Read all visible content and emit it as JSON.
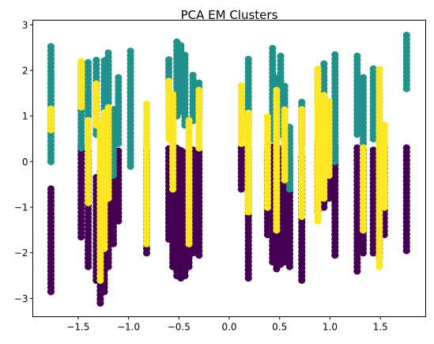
{
  "chart_data": {
    "type": "scatter",
    "title": "PCA EM Clusters",
    "xlabel": "",
    "ylabel": "",
    "xlim": [
      -1.95,
      1.95
    ],
    "ylim": [
      -3.4,
      3.1
    ],
    "xticks": [
      -1.5,
      -1.0,
      -0.5,
      0.0,
      0.5,
      1.0,
      1.5
    ],
    "xtick_labels": [
      "−1.5",
      "−1.0",
      "−0.5",
      "0.0",
      "0.5",
      "1.0",
      "1.5"
    ],
    "yticks": [
      -3,
      -2,
      -1,
      0,
      1,
      2,
      3
    ],
    "ytick_labels": [
      "−3",
      "−2",
      "−1",
      "0",
      "1",
      "2",
      "3"
    ],
    "grid": false,
    "legend": false,
    "colors": {
      "cluster_0": "#440154",
      "cluster_1": "#21918c",
      "cluster_2": "#fde725"
    },
    "series": [
      {
        "cluster": 0,
        "color": "#440154",
        "columns": [
          {
            "x": -1.77,
            "y_min": -2.85,
            "y_max": -0.55
          },
          {
            "x": -1.47,
            "y_min": -1.65,
            "y_max": 0.4
          },
          {
            "x": -1.4,
            "y_min": -2.3,
            "y_max": 0.3
          },
          {
            "x": -1.32,
            "y_min": -2.6,
            "y_max": -0.3
          },
          {
            "x": -1.28,
            "y_min": -3.1,
            "y_max": -0.2
          },
          {
            "x": -1.24,
            "y_min": -2.85,
            "y_max": 0.3
          },
          {
            "x": -1.2,
            "y_min": -2.3,
            "y_max": 0.15
          },
          {
            "x": -1.15,
            "y_min": -1.8,
            "y_max": 0.0
          },
          {
            "x": -1.1,
            "y_min": -1.3,
            "y_max": 0.3
          },
          {
            "x": -0.82,
            "y_min": -2.0,
            "y_max": 0.3
          },
          {
            "x": -0.6,
            "y_min": -1.7,
            "y_max": 0.35
          },
          {
            "x": -0.56,
            "y_min": -2.3,
            "y_max": 0.2
          },
          {
            "x": -0.52,
            "y_min": -2.5,
            "y_max": 0.3
          },
          {
            "x": -0.48,
            "y_min": -2.55,
            "y_max": 0.3
          },
          {
            "x": -0.44,
            "y_min": -2.5,
            "y_max": 0.2
          },
          {
            "x": -0.4,
            "y_min": -2.3,
            "y_max": 0.25
          },
          {
            "x": -0.36,
            "y_min": -2.0,
            "y_max": 0.3
          },
          {
            "x": -0.3,
            "y_min": -2.05,
            "y_max": 0.2
          },
          {
            "x": 0.12,
            "y_min": -0.6,
            "y_max": 0.35
          },
          {
            "x": 0.19,
            "y_min": -2.55,
            "y_max": 0.3
          },
          {
            "x": 0.38,
            "y_min": -1.6,
            "y_max": 0.2
          },
          {
            "x": 0.43,
            "y_min": -2.2,
            "y_max": 0.35
          },
          {
            "x": 0.47,
            "y_min": -2.35,
            "y_max": 0.3
          },
          {
            "x": 0.51,
            "y_min": -2.25,
            "y_max": 0.3
          },
          {
            "x": 0.55,
            "y_min": -2.2,
            "y_max": 0.2
          },
          {
            "x": 0.6,
            "y_min": -2.3,
            "y_max": 0.1
          },
          {
            "x": 0.72,
            "y_min": -2.6,
            "y_max": 0.15
          },
          {
            "x": 0.88,
            "y_min": -1.1,
            "y_max": 0.5
          },
          {
            "x": 0.94,
            "y_min": -1.0,
            "y_max": 0.4
          },
          {
            "x": 0.99,
            "y_min": -0.8,
            "y_max": 0.4
          },
          {
            "x": 1.05,
            "y_min": -2.05,
            "y_max": 0.35
          },
          {
            "x": 1.27,
            "y_min": -2.4,
            "y_max": 0.3
          },
          {
            "x": 1.33,
            "y_min": -2.0,
            "y_max": 0.3
          },
          {
            "x": 1.43,
            "y_min": -2.0,
            "y_max": 0.3
          },
          {
            "x": 1.49,
            "y_min": -2.1,
            "y_max": 0.2
          },
          {
            "x": 1.54,
            "y_min": -1.6,
            "y_max": 0.3
          },
          {
            "x": 1.76,
            "y_min": -1.95,
            "y_max": 0.3
          }
        ]
      },
      {
        "cluster": 1,
        "color": "#21918c",
        "columns": [
          {
            "x": -1.77,
            "y_min": 0.0,
            "y_max": 2.6
          },
          {
            "x": -1.47,
            "y_min": 0.3,
            "y_max": 2.15
          },
          {
            "x": -1.4,
            "y_min": 1.0,
            "y_max": 2.2
          },
          {
            "x": -1.32,
            "y_min": 0.6,
            "y_max": 2.3
          },
          {
            "x": -1.24,
            "y_min": 0.5,
            "y_max": 2.25
          },
          {
            "x": -1.2,
            "y_min": 1.3,
            "y_max": 2.4
          },
          {
            "x": -1.15,
            "y_min": -0.3,
            "y_max": 1.2
          },
          {
            "x": -1.1,
            "y_min": 0.4,
            "y_max": 1.85
          },
          {
            "x": -0.98,
            "y_min": -0.1,
            "y_max": 2.5
          },
          {
            "x": -0.6,
            "y_min": 1.6,
            "y_max": 2.25
          },
          {
            "x": -0.52,
            "y_min": 1.0,
            "y_max": 2.65
          },
          {
            "x": -0.48,
            "y_min": 1.1,
            "y_max": 2.55
          },
          {
            "x": -0.44,
            "y_min": 0.8,
            "y_max": 2.35
          },
          {
            "x": -0.36,
            "y_min": 0.9,
            "y_max": 1.9
          },
          {
            "x": -0.3,
            "y_min": 1.0,
            "y_max": 1.75
          },
          {
            "x": 0.19,
            "y_min": 0.8,
            "y_max": 2.25
          },
          {
            "x": 0.43,
            "y_min": 0.5,
            "y_max": 2.55
          },
          {
            "x": 0.47,
            "y_min": 0.3,
            "y_max": 1.9
          },
          {
            "x": 0.51,
            "y_min": 0.6,
            "y_max": 2.35
          },
          {
            "x": 0.55,
            "y_min": 0.3,
            "y_max": 1.7
          },
          {
            "x": 0.6,
            "y_min": -0.6,
            "y_max": 0.8
          },
          {
            "x": 0.72,
            "y_min": 0.4,
            "y_max": 1.3
          },
          {
            "x": 0.88,
            "y_min": 1.3,
            "y_max": 2.05
          },
          {
            "x": 0.94,
            "y_min": 0.7,
            "y_max": 2.2
          },
          {
            "x": 1.05,
            "y_min": 0.0,
            "y_max": 2.35
          },
          {
            "x": 1.27,
            "y_min": 0.6,
            "y_max": 2.35
          },
          {
            "x": 1.33,
            "y_min": 0.4,
            "y_max": 1.9
          },
          {
            "x": 1.43,
            "y_min": 0.5,
            "y_max": 2.05
          },
          {
            "x": 1.49,
            "y_min": -0.5,
            "y_max": 1.6
          },
          {
            "x": 1.76,
            "y_min": 1.6,
            "y_max": 2.8
          }
        ]
      },
      {
        "cluster": 2,
        "color": "#fde725",
        "columns": [
          {
            "x": -1.77,
            "y_min": 0.7,
            "y_max": 1.2
          },
          {
            "x": -1.47,
            "y_min": 1.2,
            "y_max": 2.25
          },
          {
            "x": -1.4,
            "y_min": -0.9,
            "y_max": 0.9
          },
          {
            "x": -1.32,
            "y_min": 0.8,
            "y_max": 1.7
          },
          {
            "x": -1.28,
            "y_min": -2.6,
            "y_max": 0.9
          },
          {
            "x": -1.24,
            "y_min": -1.9,
            "y_max": 1.1
          },
          {
            "x": -1.2,
            "y_min": -0.8,
            "y_max": 1.2
          },
          {
            "x": -0.82,
            "y_min": -1.8,
            "y_max": 1.3
          },
          {
            "x": -0.6,
            "y_min": 0.5,
            "y_max": 1.8
          },
          {
            "x": -0.56,
            "y_min": -0.6,
            "y_max": 1.5
          },
          {
            "x": -0.4,
            "y_min": -1.8,
            "y_max": 0.9
          },
          {
            "x": -0.3,
            "y_min": 0.3,
            "y_max": 1.6
          },
          {
            "x": 0.12,
            "y_min": 0.4,
            "y_max": 1.7
          },
          {
            "x": 0.19,
            "y_min": -1.1,
            "y_max": 1.1
          },
          {
            "x": 0.38,
            "y_min": -1.0,
            "y_max": 1.0
          },
          {
            "x": 0.47,
            "y_min": -1.5,
            "y_max": 1.6
          },
          {
            "x": 0.55,
            "y_min": -0.4,
            "y_max": 1.2
          },
          {
            "x": 0.72,
            "y_min": -1.2,
            "y_max": 1.2
          },
          {
            "x": 0.88,
            "y_min": -1.3,
            "y_max": 2.1
          },
          {
            "x": 0.94,
            "y_min": -0.8,
            "y_max": 1.5
          },
          {
            "x": 0.99,
            "y_min": -0.3,
            "y_max": 1.4
          },
          {
            "x": 1.33,
            "y_min": -1.5,
            "y_max": 0.3
          },
          {
            "x": 1.49,
            "y_min": -2.3,
            "y_max": 2.1
          },
          {
            "x": 1.54,
            "y_min": -1.0,
            "y_max": 0.8
          }
        ]
      }
    ]
  }
}
